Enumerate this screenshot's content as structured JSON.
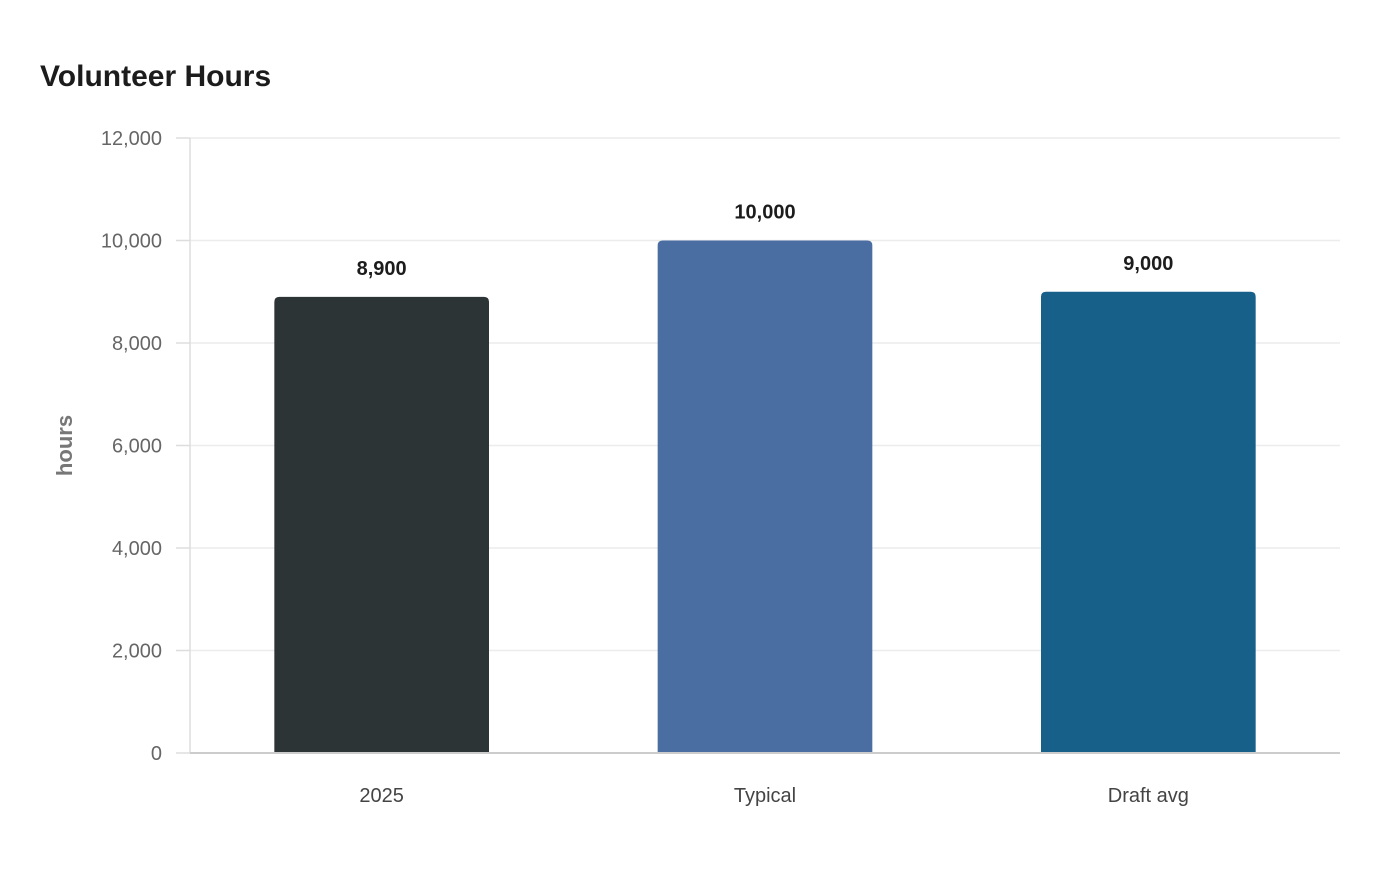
{
  "chart_data": {
    "type": "bar",
    "title": "Volunteer Hours",
    "xlabel": "",
    "ylabel": "hours",
    "categories": [
      "2025",
      "Typical",
      "Draft avg"
    ],
    "values": [
      8900,
      10000,
      9000
    ],
    "value_labels": [
      "8,900",
      "10,000",
      "9,000"
    ],
    "colors": [
      "#2d3436",
      "#4a6da2",
      "#176089"
    ],
    "ylim": [
      0,
      12000
    ],
    "yticks": [
      0,
      2000,
      4000,
      6000,
      8000,
      10000,
      12000
    ],
    "ytick_labels": [
      "0",
      "2,000",
      "4,000",
      "6,000",
      "8,000",
      "10,000",
      "12,000"
    ],
    "grid": true,
    "legend": "none"
  }
}
